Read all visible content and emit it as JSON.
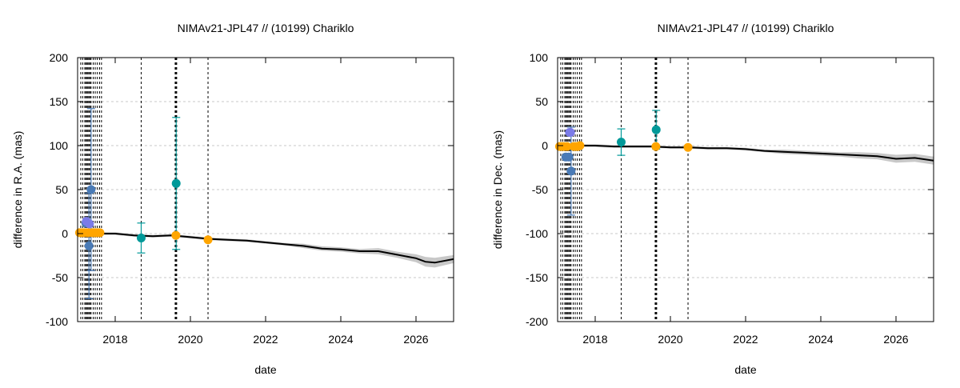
{
  "chart_data": [
    {
      "type": "scatter",
      "title": "NIMAv21-JPL47 // (10199) Chariklo",
      "xlabel": "date",
      "ylabel": "difference in R.A. (mas)",
      "xlim": [
        "2017-01-01",
        "2027-01-01"
      ],
      "ylim": [
        -100,
        200
      ],
      "x_ticks": [
        "2018",
        "2020",
        "2022",
        "2024",
        "2026"
      ],
      "y_ticks": [
        "-100",
        "-50",
        "0",
        "50",
        "100",
        "150",
        "200"
      ],
      "grid": "horizontal dashed",
      "event_dates": [
        "2017-02-01",
        "2017-02-20",
        "2017-03-10",
        "2017-03-20",
        "2017-04-01",
        "2017-04-10",
        "2017-04-20",
        "2017-05-01",
        "2017-05-10",
        "2017-06-01",
        "2017-06-20",
        "2017-07-10",
        "2017-08-01",
        "2017-08-20",
        "2018-09-10",
        "2019-08-05",
        "2019-08-10",
        "2019-08-15",
        "2019-08-20",
        "2020-06-20"
      ],
      "orbit_difference_curve": {
        "color": "#000000",
        "band_color": "#c8c8c8",
        "x": [
          "2017-01-01",
          "2017-07-01",
          "2018-01-01",
          "2018-07-01",
          "2019-01-01",
          "2019-07-01",
          "2020-01-01",
          "2020-07-01",
          "2021-01-01",
          "2021-07-01",
          "2022-01-01",
          "2022-07-01",
          "2023-01-01",
          "2023-07-01",
          "2024-01-01",
          "2024-07-01",
          "2025-01-01",
          "2025-07-01",
          "2026-01-01",
          "2026-04-01",
          "2026-07-01",
          "2027-01-01"
        ],
        "y": [
          1,
          0,
          0,
          -2,
          -3,
          -2,
          -4,
          -6,
          -7,
          -8,
          -10,
          -12,
          -14,
          -17,
          -18,
          -20,
          -20,
          -24,
          -28,
          -32,
          -33,
          -29
        ],
        "band": [
          0,
          0,
          0,
          0,
          0,
          0,
          0,
          0,
          0,
          0,
          0,
          0,
          1,
          1,
          1,
          1,
          2,
          2,
          3,
          4,
          4,
          3
        ]
      },
      "series": [
        {
          "color": "#4a7bb7",
          "points": [
            {
              "x": "2017-03-20",
              "y": 12,
              "err": 0
            },
            {
              "x": "2017-04-20",
              "y": -14,
              "err": 60
            },
            {
              "x": "2017-05-10",
              "y": 50,
              "err": 92
            },
            {
              "x": "2017-05-25",
              "y": 1,
              "err": 0
            }
          ]
        },
        {
          "color": "#7b7be8",
          "points": [
            {
              "x": "2017-03-25",
              "y": 14,
              "err": 0
            },
            {
              "x": "2017-04-25",
              "y": 11,
              "err": 0
            }
          ]
        },
        {
          "color": "#009999",
          "points": [
            {
              "x": "2018-09-10",
              "y": -5,
              "err": 17
            },
            {
              "x": "2019-08-15",
              "y": 57,
              "err": 75
            }
          ]
        },
        {
          "color": "#ffa500",
          "points": [
            {
              "x": "2017-01-20",
              "y": 1
            },
            {
              "x": "2017-02-10",
              "y": 1
            },
            {
              "x": "2017-03-01",
              "y": 1
            },
            {
              "x": "2017-04-01",
              "y": 1
            },
            {
              "x": "2017-04-15",
              "y": 1
            },
            {
              "x": "2017-05-20",
              "y": 1
            },
            {
              "x": "2017-06-10",
              "y": 1
            },
            {
              "x": "2017-06-25",
              "y": 1
            },
            {
              "x": "2017-07-15",
              "y": 1
            },
            {
              "x": "2017-08-05",
              "y": 1
            },
            {
              "x": "2019-08-12",
              "y": -2
            },
            {
              "x": "2020-06-20",
              "y": -7
            }
          ]
        }
      ]
    },
    {
      "type": "scatter",
      "title": "NIMAv21-JPL47 // (10199) Chariklo",
      "xlabel": "date",
      "ylabel": "difference in Dec. (mas)",
      "xlim": [
        "2017-01-01",
        "2027-01-01"
      ],
      "ylim": [
        -200,
        100
      ],
      "x_ticks": [
        "2018",
        "2020",
        "2022",
        "2024",
        "2026"
      ],
      "y_ticks": [
        "-200",
        "-150",
        "-100",
        "-50",
        "0",
        "50",
        "100"
      ],
      "grid": "horizontal dashed",
      "event_dates": [
        "2017-02-01",
        "2017-02-20",
        "2017-03-10",
        "2017-03-20",
        "2017-04-01",
        "2017-04-10",
        "2017-04-20",
        "2017-05-01",
        "2017-05-10",
        "2017-06-01",
        "2017-06-20",
        "2017-07-10",
        "2017-08-01",
        "2017-08-20",
        "2018-09-10",
        "2019-08-05",
        "2019-08-10",
        "2019-08-15",
        "2019-08-20",
        "2020-06-20"
      ],
      "orbit_difference_curve": {
        "color": "#000000",
        "band_color": "#c8c8c8",
        "x": [
          "2017-01-01",
          "2017-07-01",
          "2018-01-01",
          "2018-07-01",
          "2019-01-01",
          "2019-07-01",
          "2020-01-01",
          "2020-07-01",
          "2021-01-01",
          "2021-07-01",
          "2022-01-01",
          "2022-07-01",
          "2023-01-01",
          "2023-07-01",
          "2024-01-01",
          "2024-07-01",
          "2025-01-01",
          "2025-07-01",
          "2026-01-01",
          "2026-07-01",
          "2027-01-01"
        ],
        "y": [
          0,
          0,
          0,
          -1,
          -1,
          -1,
          -2,
          -2,
          -3,
          -3,
          -4,
          -6,
          -7,
          -8,
          -9,
          -10,
          -11,
          -12,
          -15,
          -14,
          -17
        ],
        "band": [
          0,
          0,
          0,
          0,
          0,
          0,
          0,
          0,
          0,
          0,
          0,
          0,
          1,
          1,
          1,
          1,
          2,
          2,
          3,
          3,
          3
        ]
      },
      "series": [
        {
          "color": "#4a7bb7",
          "points": [
            {
              "x": "2017-03-20",
              "y": -13,
              "err": 0
            },
            {
              "x": "2017-04-20",
              "y": -13,
              "err": 0
            },
            {
              "x": "2017-05-10",
              "y": -29,
              "err": 50
            }
          ]
        },
        {
          "color": "#7b7be8",
          "points": [
            {
              "x": "2017-04-25",
              "y": 15,
              "err": 0
            },
            {
              "x": "2017-05-05",
              "y": 15,
              "err": 0
            }
          ]
        },
        {
          "color": "#009999",
          "points": [
            {
              "x": "2018-09-10",
              "y": 4,
              "err": 15
            },
            {
              "x": "2019-08-15",
              "y": 18,
              "err": 22
            }
          ]
        },
        {
          "color": "#ffa500",
          "points": [
            {
              "x": "2017-01-20",
              "y": -1
            },
            {
              "x": "2017-02-10",
              "y": -1
            },
            {
              "x": "2017-03-01",
              "y": -1
            },
            {
              "x": "2017-04-01",
              "y": -1
            },
            {
              "x": "2017-06-05",
              "y": -1
            },
            {
              "x": "2017-06-25",
              "y": -1
            },
            {
              "x": "2017-07-15",
              "y": -1
            },
            {
              "x": "2017-08-05",
              "y": 0
            },
            {
              "x": "2019-08-12",
              "y": -1
            },
            {
              "x": "2020-06-20",
              "y": -2
            }
          ]
        }
      ]
    }
  ]
}
